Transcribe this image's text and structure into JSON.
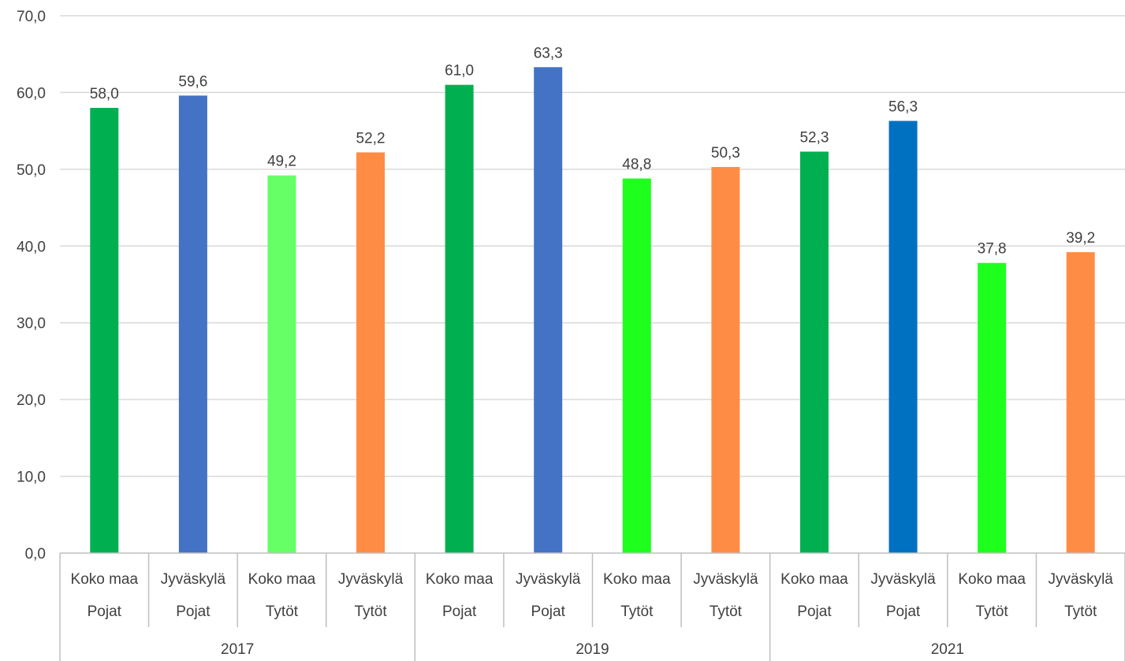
{
  "chart_data": {
    "type": "bar",
    "ylim": [
      0,
      70
    ],
    "yticks": [
      "0,0",
      "10,0",
      "20,0",
      "30,0",
      "40,0",
      "50,0",
      "60,0",
      "70,0"
    ],
    "grid": true,
    "legend": "none",
    "groups": [
      {
        "label": "2017",
        "categories": [
          {
            "region": "Koko maa",
            "sex": "Pojat",
            "value": 58.0,
            "value_label": "58,0",
            "color": "#00b050"
          },
          {
            "region": "Jyväskylä",
            "sex": "Pojat",
            "value": 59.6,
            "value_label": "59,6",
            "color": "#4472c4"
          },
          {
            "region": "Koko maa",
            "sex": "Tytöt",
            "value": 49.2,
            "value_label": "49,2",
            "color": "#66ff66"
          },
          {
            "region": "Jyväskylä",
            "sex": "Tytöt",
            "value": 52.2,
            "value_label": "52,2",
            "color": "#ff8c45"
          }
        ]
      },
      {
        "label": "2019",
        "categories": [
          {
            "region": "Koko maa",
            "sex": "Pojat",
            "value": 61.0,
            "value_label": "61,0",
            "color": "#00b050"
          },
          {
            "region": "Jyväskylä",
            "sex": "Pojat",
            "value": 63.3,
            "value_label": "63,3",
            "color": "#4472c4"
          },
          {
            "region": "Koko maa",
            "sex": "Tytöt",
            "value": 48.8,
            "value_label": "48,8",
            "color": "#1eff1e"
          },
          {
            "region": "Jyväskylä",
            "sex": "Tytöt",
            "value": 50.3,
            "value_label": "50,3",
            "color": "#ff8c45"
          }
        ]
      },
      {
        "label": "2021",
        "categories": [
          {
            "region": "Koko maa",
            "sex": "Pojat",
            "value": 52.3,
            "value_label": "52,3",
            "color": "#00b050"
          },
          {
            "region": "Jyväskylä",
            "sex": "Pojat",
            "value": 56.3,
            "value_label": "56,3",
            "color": "#0070c0"
          },
          {
            "region": "Koko maa",
            "sex": "Tytöt",
            "value": 37.8,
            "value_label": "37,8",
            "color": "#1eff1e"
          },
          {
            "region": "Jyväskylä",
            "sex": "Tytöt",
            "value": 39.2,
            "value_label": "39,2",
            "color": "#ff8c45"
          }
        ]
      }
    ]
  }
}
